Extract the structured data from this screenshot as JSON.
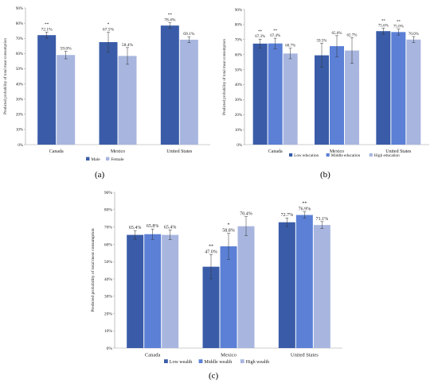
{
  "colors": {
    "dark": "#3a5ca8",
    "medium": "#5b80d6",
    "light": "#a8b6df"
  },
  "chart_data": [
    {
      "id": "a",
      "panel_label": "(a)",
      "type": "bar",
      "ylabel": "Predicted probability of total meat consumption",
      "ylim": [
        0,
        90
      ],
      "yticks": [
        "0%",
        "10%",
        "20%",
        "30%",
        "40%",
        "50%",
        "60%",
        "70%",
        "80%",
        "90%"
      ],
      "categories": [
        "Canada",
        "Mexico",
        "United States"
      ],
      "series": [
        {
          "name": "Male",
          "color": "#3a5ca8",
          "values": [
            72.1,
            67.5,
            78.4
          ],
          "labels": [
            "72.1%",
            "67.5%",
            "78.4%"
          ],
          "sig": [
            "**",
            "*",
            "**"
          ],
          "err": [
            2.0,
            6.5,
            1.8
          ]
        },
        {
          "name": "Female",
          "color": "#a8b6df",
          "values": [
            59.0,
            58.4,
            69.1
          ],
          "labels": [
            "59.0%",
            "58.4%",
            "69.1%"
          ],
          "sig": [
            "",
            "",
            ""
          ],
          "err": [
            2.5,
            5.5,
            2.0
          ]
        }
      ]
    },
    {
      "id": "b",
      "panel_label": "(b)",
      "type": "bar",
      "ylabel": "Predicted probability of total meat consumption",
      "ylim": [
        0,
        90
      ],
      "yticks": [
        "0%",
        "10%",
        "20%",
        "30%",
        "40%",
        "50%",
        "60%",
        "70%",
        "80%",
        "90%"
      ],
      "categories": [
        "Canada",
        "Mexico",
        "United States"
      ],
      "series": [
        {
          "name": "Low education",
          "color": "#3a5ca8",
          "values": [
            67.3,
            59.5,
            75.6
          ],
          "labels": [
            "67.3%",
            "59.5%",
            "75.6%"
          ],
          "sig": [
            "**",
            "",
            "**"
          ],
          "err": [
            3.0,
            8.0,
            2.0
          ]
        },
        {
          "name": "Middle education",
          "color": "#5b80d6",
          "values": [
            67.4,
            65.6,
            75.0
          ],
          "labels": [
            "67.4%",
            "65.6%",
            "75.0%"
          ],
          "sig": [
            "**",
            "",
            "**"
          ],
          "err": [
            3.5,
            7.0,
            2.0
          ]
        },
        {
          "name": "High education",
          "color": "#a8b6df",
          "values": [
            60.7,
            62.7,
            70.0
          ],
          "labels": [
            "60.7%",
            "62.7%",
            "70.0%"
          ],
          "sig": [
            "",
            "",
            ""
          ],
          "err": [
            3.5,
            8.5,
            2.0
          ]
        }
      ]
    },
    {
      "id": "c",
      "panel_label": "(c)",
      "type": "bar",
      "ylabel": "Predicted probability of total meat consumption",
      "ylim": [
        0,
        90
      ],
      "yticks": [
        "0%",
        "10%",
        "20%",
        "30%",
        "40%",
        "50%",
        "60%",
        "70%",
        "80%",
        "90%"
      ],
      "categories": [
        "Canada",
        "Mexico",
        "United States"
      ],
      "series": [
        {
          "name": "Low wealth",
          "color": "#3a5ca8",
          "values": [
            65.4,
            47.0,
            72.7
          ],
          "labels": [
            "65.4%",
            "47.0%",
            "72.7%"
          ],
          "sig": [
            "",
            "**",
            ""
          ],
          "err": [
            2.5,
            7.0,
            2.5
          ]
        },
        {
          "name": "Middle wealth",
          "color": "#5b80d6",
          "values": [
            65.8,
            58.8,
            76.9
          ],
          "labels": [
            "65.8%",
            "58.8%",
            "76.9%"
          ],
          "sig": [
            "",
            "*",
            "**"
          ],
          "err": [
            3.0,
            7.5,
            1.8
          ]
        },
        {
          "name": "High wealth",
          "color": "#a8b6df",
          "values": [
            65.4,
            70.4,
            71.1
          ],
          "labels": [
            "65.4%",
            "70.4%",
            "71.1%"
          ],
          "sig": [
            "",
            "",
            ""
          ],
          "err": [
            2.8,
            5.5,
            2.0
          ]
        }
      ]
    }
  ]
}
